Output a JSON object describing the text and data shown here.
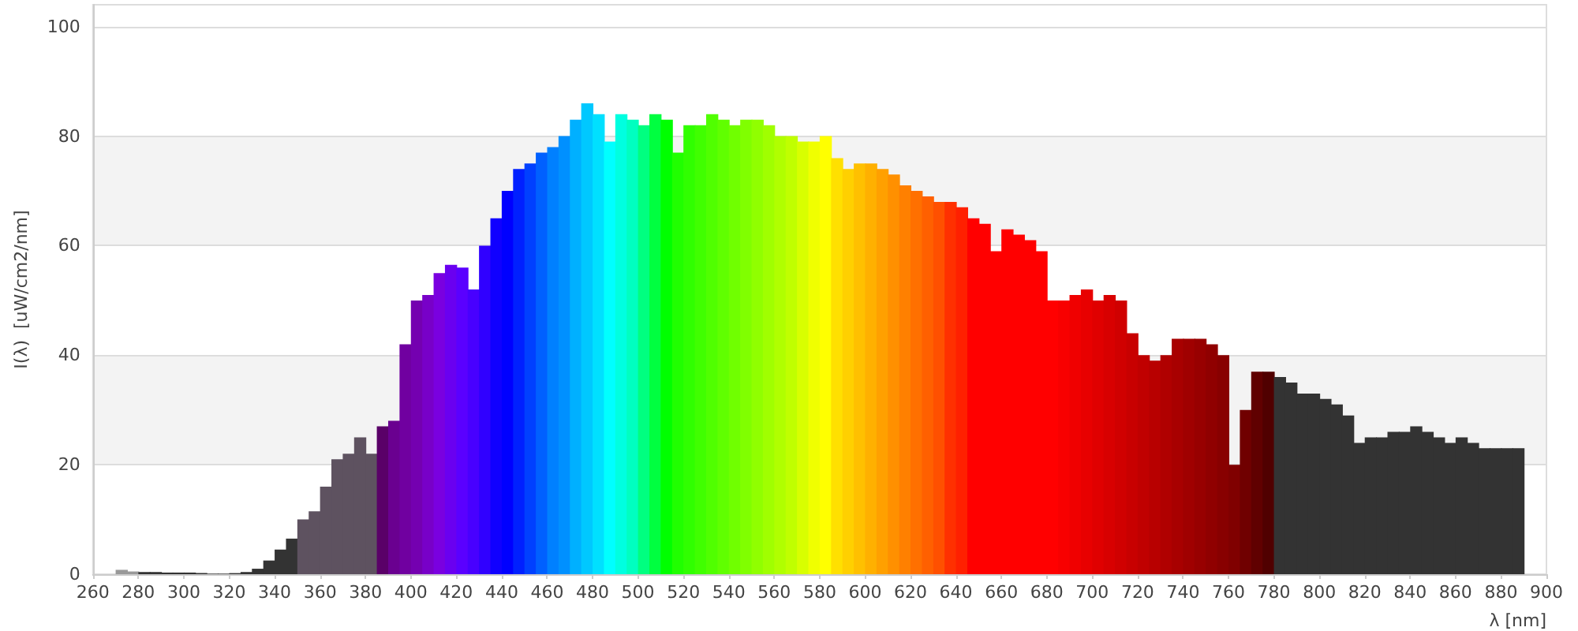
{
  "chart_data": {
    "type": "histogram",
    "xlabel": "λ [nm]",
    "ylabel": "I(λ)  [uW/cm2/nm]",
    "bins": [
      270,
      275,
      280,
      285,
      290,
      295,
      300,
      305,
      310,
      315,
      320,
      325,
      330,
      335,
      340,
      345,
      350,
      355,
      360,
      365,
      370,
      375,
      380,
      385,
      390,
      395,
      400,
      405,
      410,
      415,
      420,
      425,
      430,
      435,
      440,
      445,
      450,
      455,
      460,
      465,
      470,
      475,
      480,
      485,
      490,
      495,
      500,
      505,
      510,
      515,
      520,
      525,
      530,
      535,
      540,
      545,
      550,
      555,
      560,
      565,
      570,
      575,
      580,
      585,
      590,
      595,
      600,
      605,
      610,
      615,
      620,
      625,
      630,
      635,
      640,
      645,
      650,
      655,
      660,
      665,
      670,
      675,
      680,
      685,
      690,
      695,
      700,
      705,
      710,
      715,
      720,
      725,
      730,
      735,
      740,
      745,
      750,
      755,
      760,
      765,
      770,
      775,
      780,
      785,
      790,
      795,
      800,
      805,
      810,
      815,
      820,
      825,
      830,
      835,
      840,
      845,
      850,
      855,
      860,
      865,
      870,
      875,
      880,
      885,
      890
    ],
    "values": [
      0.8,
      0.5,
      0.4,
      0.4,
      0.3,
      0.3,
      0.3,
      0.2,
      0.1,
      0.1,
      0.2,
      0.4,
      1,
      2.5,
      4.5,
      6.5,
      10,
      11.5,
      16,
      21,
      22,
      25,
      22,
      27,
      28,
      42,
      50,
      51,
      55,
      56.5,
      56,
      52,
      60,
      65,
      70,
      74,
      75,
      77,
      78,
      80,
      83,
      86,
      84,
      79,
      84,
      83,
      82,
      84,
      83,
      77,
      82,
      82,
      84,
      83,
      82,
      83,
      83,
      82,
      80,
      80,
      79,
      79,
      80,
      76,
      74,
      75,
      75,
      74,
      73,
      71,
      70,
      69,
      68,
      68,
      67,
      65,
      64,
      59,
      63,
      62,
      61,
      59,
      50,
      50,
      51,
      52,
      50,
      51,
      50,
      44,
      40,
      39,
      40,
      43,
      43,
      43,
      42,
      40,
      20,
      30,
      37,
      37,
      36,
      35,
      33,
      33,
      32,
      31,
      29,
      24,
      25,
      25,
      26,
      26,
      27,
      26,
      25,
      24,
      25,
      24,
      23,
      23,
      23,
      23
    ],
    "colors": [
      "#999999",
      "#999999",
      "#333333",
      "#333333",
      "#333333",
      "#333333",
      "#333333",
      "#333333",
      "#333333",
      "#333333",
      "#333333",
      "#333333",
      "#333333",
      "#333333",
      "#333333",
      "#333333",
      "#5e5260",
      "#5e5260",
      "#5e5260",
      "#5e5260",
      "#5e5260",
      "#5e5260",
      "#5e5260",
      "#5a0068",
      "#6a0090",
      "#7000a0",
      "#7400b0",
      "#7800c8",
      "#7a00e0",
      "#6a00f0",
      "#5a00ff",
      "#4800ff",
      "#3000ff",
      "#1000ff",
      "#0000ff",
      "#0020ff",
      "#0040ff",
      "#0060ff",
      "#0080ff",
      "#0090ff",
      "#00b0ff",
      "#00c8ff",
      "#00e0ff",
      "#00ffff",
      "#00ffe0",
      "#00ffc0",
      "#00ff80",
      "#00ff40",
      "#00ff00",
      "#20ff00",
      "#30ff00",
      "#40ff00",
      "#50ff00",
      "#60ff00",
      "#70ff00",
      "#80ff00",
      "#90ff00",
      "#a0ff00",
      "#b0ff00",
      "#c0ff00",
      "#d8ff00",
      "#f0ff00",
      "#ffff00",
      "#ffe000",
      "#ffd000",
      "#ffc000",
      "#ffb000",
      "#ffa000",
      "#ff9000",
      "#ff8000",
      "#ff7000",
      "#ff6000",
      "#ff5000",
      "#ff3000",
      "#ff2000",
      "#ff0000",
      "#ff0000",
      "#ff0000",
      "#ff0000",
      "#ff0000",
      "#ff0000",
      "#ff0000",
      "#ff0000",
      "#f80000",
      "#f00000",
      "#e80000",
      "#e00000",
      "#d80000",
      "#d00000",
      "#c80000",
      "#c00000",
      "#b80000",
      "#b00000",
      "#a80000",
      "#a00000",
      "#980000",
      "#900000",
      "#880000",
      "#800000",
      "#700000",
      "#600000",
      "#500000",
      "#333333",
      "#333333",
      "#333333",
      "#333333",
      "#333333",
      "#333333",
      "#333333",
      "#333333",
      "#333333",
      "#333333",
      "#333333",
      "#333333",
      "#333333",
      "#333333",
      "#333333",
      "#333333",
      "#333333",
      "#333333",
      "#333333",
      "#333333",
      "#333333",
      "#333333"
    ],
    "xlim": [
      260,
      900
    ],
    "xticks": [
      260,
      280,
      300,
      320,
      340,
      360,
      380,
      400,
      420,
      440,
      460,
      480,
      500,
      520,
      540,
      560,
      580,
      600,
      620,
      640,
      660,
      680,
      700,
      720,
      740,
      760,
      780,
      800,
      820,
      840,
      860,
      880,
      900
    ],
    "ylim": [
      0,
      104
    ],
    "yticks": [
      0,
      20,
      40,
      60,
      80,
      100
    ],
    "grid": "y"
  }
}
